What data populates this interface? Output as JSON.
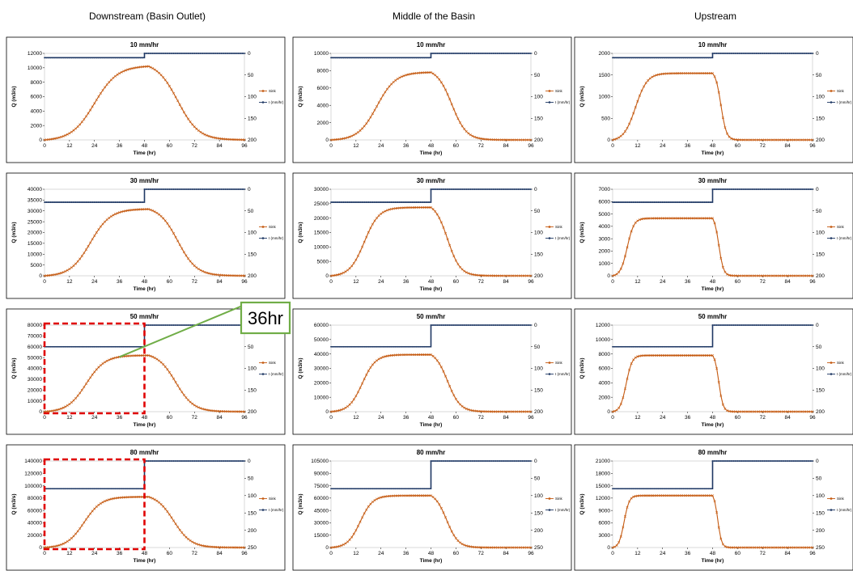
{
  "column_headers": [
    "Downstream (Basin Outlet)",
    "Middle of the Basin",
    "Upstream"
  ],
  "callout": {
    "label": "36hr",
    "border_color": "#70ad47"
  },
  "colors": {
    "sink": "#c55a11",
    "rain": "#1f3864",
    "highlight": "#e00000"
  },
  "chart_data": [
    {
      "type": "line",
      "row": 0,
      "col": 0,
      "title": "10 mm/hr",
      "xlabel": "Time (hr)",
      "ylabel": "Q (m3/s)",
      "xlim": [
        0,
        96
      ],
      "xticks": [
        0,
        12,
        24,
        36,
        48,
        60,
        72,
        84,
        96
      ],
      "ylim": [
        0,
        12000
      ],
      "yticks": [
        0,
        2000,
        4000,
        6000,
        8000,
        10000,
        12000
      ],
      "y2lim": [
        0,
        200
      ],
      "y2ticks": [
        0,
        50,
        100,
        150,
        200
      ],
      "series": [
        {
          "name": "Sink",
          "shape": "sigmoid",
          "peak": 10200,
          "rise_mid": 24,
          "rise_width": 5.5,
          "peak_hour": 50,
          "fall_mid": 64,
          "fall_width": 5
        },
        {
          "name": "I (mm/hr)",
          "values": [
            {
              "from": 0,
              "to": 48,
              "value": 10
            },
            {
              "from": 48,
              "to": 96,
              "value": 0
            }
          ]
        }
      ],
      "legend_position": "right"
    },
    {
      "type": "line",
      "row": 0,
      "col": 1,
      "title": "10 mm/hr",
      "xlabel": "Time (hr)",
      "ylabel": "Q (m3/s)",
      "xlim": [
        0,
        96
      ],
      "xticks": [
        0,
        12,
        24,
        36,
        48,
        60,
        72,
        84,
        96
      ],
      "ylim": [
        0,
        10000
      ],
      "yticks": [
        0,
        2000,
        4000,
        6000,
        8000,
        10000
      ],
      "y2lim": [
        0,
        200
      ],
      "y2ticks": [
        0,
        50,
        100,
        150,
        200
      ],
      "series": [
        {
          "name": "Sink",
          "shape": "sigmoid",
          "peak": 7800,
          "rise_mid": 22,
          "rise_width": 4.5,
          "peak_hour": 48,
          "fall_mid": 58,
          "fall_width": 3.5
        },
        {
          "name": "I (mm/hr)",
          "values": [
            {
              "from": 0,
              "to": 48,
              "value": 10
            },
            {
              "from": 48,
              "to": 96,
              "value": 0
            }
          ]
        }
      ],
      "legend_position": "right"
    },
    {
      "type": "line",
      "row": 0,
      "col": 2,
      "title": "10 mm/hr",
      "xlabel": "Time (hr)",
      "ylabel": "Q (m3/s)",
      "xlim": [
        0,
        96
      ],
      "xticks": [
        0,
        12,
        24,
        36,
        48,
        60,
        72,
        84,
        96
      ],
      "ylim": [
        0,
        2000
      ],
      "yticks": [
        0,
        500,
        1000,
        1500,
        2000
      ],
      "y2lim": [
        0,
        200
      ],
      "y2ticks": [
        0,
        50,
        100,
        150,
        200
      ],
      "series": [
        {
          "name": "Sink",
          "shape": "sigmoid",
          "peak": 1540,
          "rise_mid": 11,
          "rise_width": 2.8,
          "peak_hour": 48,
          "fall_mid": 52,
          "fall_width": 1.3
        },
        {
          "name": "I (mm/hr)",
          "values": [
            {
              "from": 0,
              "to": 48,
              "value": 10
            },
            {
              "from": 48,
              "to": 96,
              "value": 0
            }
          ]
        }
      ],
      "legend_position": "right"
    },
    {
      "type": "line",
      "row": 1,
      "col": 0,
      "title": "30 mm/hr",
      "xlabel": "Time (hr)",
      "ylabel": "Q (m3/s)",
      "xlim": [
        0,
        96
      ],
      "xticks": [
        0,
        12,
        24,
        36,
        48,
        60,
        72,
        84,
        96
      ],
      "ylim": [
        0,
        40000
      ],
      "yticks": [
        0,
        5000,
        10000,
        15000,
        20000,
        25000,
        30000,
        35000,
        40000
      ],
      "y2lim": [
        0,
        200
      ],
      "y2ticks": [
        0,
        50,
        100,
        150,
        200
      ],
      "series": [
        {
          "name": "Sink",
          "shape": "sigmoid",
          "peak": 30800,
          "rise_mid": 22,
          "rise_width": 4.8,
          "peak_hour": 50,
          "fall_mid": 64,
          "fall_width": 4.5
        },
        {
          "name": "I (mm/hr)",
          "values": [
            {
              "from": 0,
              "to": 48,
              "value": 30
            },
            {
              "from": 48,
              "to": 96,
              "value": 0
            }
          ]
        }
      ],
      "legend_position": "right"
    },
    {
      "type": "line",
      "row": 1,
      "col": 1,
      "title": "30 mm/hr",
      "xlabel": "Time (hr)",
      "ylabel": "Q (m3/s)",
      "xlim": [
        0,
        96
      ],
      "xticks": [
        0,
        12,
        24,
        36,
        48,
        60,
        72,
        84,
        96
      ],
      "ylim": [
        0,
        30000
      ],
      "yticks": [
        0,
        5000,
        10000,
        15000,
        20000,
        25000,
        30000
      ],
      "y2lim": [
        0,
        200
      ],
      "y2ticks": [
        0,
        50,
        100,
        150,
        200
      ],
      "series": [
        {
          "name": "Sink",
          "shape": "sigmoid",
          "peak": 23700,
          "rise_mid": 16,
          "rise_width": 3.5,
          "peak_hour": 48,
          "fall_mid": 56,
          "fall_width": 3
        },
        {
          "name": "I (mm/hr)",
          "values": [
            {
              "from": 0,
              "to": 48,
              "value": 30
            },
            {
              "from": 48,
              "to": 96,
              "value": 0
            }
          ]
        }
      ],
      "legend_position": "right"
    },
    {
      "type": "line",
      "row": 1,
      "col": 2,
      "title": "30 mm/hr",
      "xlabel": "Time (hr)",
      "ylabel": "Q (m3/s)",
      "xlim": [
        0,
        96
      ],
      "xticks": [
        0,
        12,
        24,
        36,
        48,
        60,
        72,
        84,
        96
      ],
      "ylim": [
        0,
        7000
      ],
      "yticks": [
        0,
        1000,
        2000,
        3000,
        4000,
        5000,
        6000,
        7000
      ],
      "y2lim": [
        0,
        200
      ],
      "y2ticks": [
        0,
        50,
        100,
        150,
        200
      ],
      "series": [
        {
          "name": "Sink",
          "shape": "sigmoid",
          "peak": 4650,
          "rise_mid": 7,
          "rise_width": 1.6,
          "peak_hour": 48,
          "fall_mid": 51,
          "fall_width": 1.1
        },
        {
          "name": "I (mm/hr)",
          "values": [
            {
              "from": 0,
              "to": 48,
              "value": 30
            },
            {
              "from": 48,
              "to": 96,
              "value": 0
            }
          ]
        }
      ],
      "legend_position": "right"
    },
    {
      "type": "line",
      "row": 2,
      "col": 0,
      "title": "50 mm/hr",
      "xlabel": "Time (hr)",
      "ylabel": "Q (m3/s)",
      "xlim": [
        0,
        96
      ],
      "xticks": [
        0,
        12,
        24,
        36,
        48,
        60,
        72,
        84,
        96
      ],
      "ylim": [
        0,
        80000
      ],
      "yticks": [
        0,
        10000,
        20000,
        30000,
        40000,
        50000,
        60000,
        70000,
        80000
      ],
      "y2lim": [
        0,
        200
      ],
      "y2ticks": [
        0,
        50,
        100,
        150,
        200
      ],
      "series": [
        {
          "name": "Sink",
          "shape": "sigmoid",
          "peak": 52000,
          "rise_mid": 20,
          "rise_width": 4.5,
          "peak_hour": 50,
          "fall_mid": 63,
          "fall_width": 4.3
        },
        {
          "name": "I (mm/hr)",
          "values": [
            {
              "from": 0,
              "to": 48,
              "value": 50
            },
            {
              "from": 48,
              "to": 96,
              "value": 0
            }
          ]
        }
      ],
      "legend_position": "right"
    },
    {
      "type": "line",
      "row": 2,
      "col": 1,
      "title": "50 mm/hr",
      "xlabel": "Time (hr)",
      "ylabel": "Q (m3/s)",
      "xlim": [
        0,
        96
      ],
      "xticks": [
        0,
        12,
        24,
        36,
        48,
        60,
        72,
        84,
        96
      ],
      "ylim": [
        0,
        60000
      ],
      "yticks": [
        0,
        10000,
        20000,
        30000,
        40000,
        50000,
        60000
      ],
      "y2lim": [
        0,
        200
      ],
      "y2ticks": [
        0,
        50,
        100,
        150,
        200
      ],
      "series": [
        {
          "name": "Sink",
          "shape": "sigmoid",
          "peak": 39500,
          "rise_mid": 15,
          "rise_width": 3.2,
          "peak_hour": 48,
          "fall_mid": 56,
          "fall_width": 3
        },
        {
          "name": "I (mm/hr)",
          "values": [
            {
              "from": 0,
              "to": 48,
              "value": 50
            },
            {
              "from": 48,
              "to": 96,
              "value": 0
            }
          ]
        }
      ],
      "legend_position": "right"
    },
    {
      "type": "line",
      "row": 2,
      "col": 2,
      "title": "50 mm/hr",
      "xlabel": "Time (hr)",
      "ylabel": "Q (m3/s)",
      "xlim": [
        0,
        96
      ],
      "xticks": [
        0,
        12,
        24,
        36,
        48,
        60,
        72,
        84,
        96
      ],
      "ylim": [
        0,
        12000
      ],
      "yticks": [
        0,
        2000,
        4000,
        6000,
        8000,
        10000,
        12000
      ],
      "y2lim": [
        0,
        200
      ],
      "y2ticks": [
        0,
        50,
        100,
        150,
        200
      ],
      "series": [
        {
          "name": "Sink",
          "shape": "sigmoid",
          "peak": 7800,
          "rise_mid": 6.5,
          "rise_width": 1.4,
          "peak_hour": 48,
          "fall_mid": 51,
          "fall_width": 1
        },
        {
          "name": "I (mm/hr)",
          "values": [
            {
              "from": 0,
              "to": 48,
              "value": 50
            },
            {
              "from": 48,
              "to": 96,
              "value": 0
            }
          ]
        }
      ],
      "legend_position": "right"
    },
    {
      "type": "line",
      "row": 3,
      "col": 0,
      "title": "80 mm/hr",
      "xlabel": "Time (hr)",
      "ylabel": "Q (m3/s)",
      "xlim": [
        0,
        96
      ],
      "xticks": [
        0,
        12,
        24,
        36,
        48,
        60,
        72,
        84,
        96
      ],
      "ylim": [
        0,
        140000
      ],
      "yticks": [
        0,
        20000,
        40000,
        60000,
        80000,
        100000,
        120000,
        140000
      ],
      "y2lim": [
        0,
        250
      ],
      "y2ticks": [
        0,
        50,
        100,
        150,
        200,
        250
      ],
      "series": [
        {
          "name": "Sink",
          "shape": "sigmoid",
          "peak": 82000,
          "rise_mid": 19,
          "rise_width": 4.2,
          "peak_hour": 50,
          "fall_mid": 62,
          "fall_width": 4.2
        },
        {
          "name": "I (mm/hr)",
          "values": [
            {
              "from": 0,
              "to": 48,
              "value": 80
            },
            {
              "from": 48,
              "to": 96,
              "value": 0
            }
          ]
        }
      ],
      "legend_position": "right"
    },
    {
      "type": "line",
      "row": 3,
      "col": 1,
      "title": "80 mm/hr",
      "xlabel": "Time (hr)",
      "ylabel": "Q (m3/s)",
      "xlim": [
        0,
        96
      ],
      "xticks": [
        0,
        12,
        24,
        36,
        48,
        60,
        72,
        84,
        96
      ],
      "ylim": [
        0,
        105000
      ],
      "yticks": [
        0,
        15000,
        30000,
        45000,
        60000,
        75000,
        90000,
        105000
      ],
      "y2lim": [
        0,
        250
      ],
      "y2ticks": [
        0,
        50,
        100,
        150,
        200,
        250
      ],
      "series": [
        {
          "name": "Sink",
          "shape": "sigmoid",
          "peak": 63000,
          "rise_mid": 14,
          "rise_width": 3,
          "peak_hour": 48,
          "fall_mid": 55.5,
          "fall_width": 2.8
        },
        {
          "name": "I (mm/hr)",
          "values": [
            {
              "from": 0,
              "to": 48,
              "value": 80
            },
            {
              "from": 48,
              "to": 96,
              "value": 0
            }
          ]
        }
      ],
      "legend_position": "right"
    },
    {
      "type": "line",
      "row": 3,
      "col": 2,
      "title": "80 mm/hr",
      "xlabel": "Time (hr)",
      "ylabel": "Q (m3/s)",
      "xlim": [
        0,
        96
      ],
      "xticks": [
        0,
        12,
        24,
        36,
        48,
        60,
        72,
        84,
        96
      ],
      "ylim": [
        0,
        21000
      ],
      "yticks": [
        0,
        3000,
        6000,
        9000,
        12000,
        15000,
        18000,
        21000
      ],
      "y2lim": [
        0,
        250
      ],
      "y2ticks": [
        0,
        50,
        100,
        150,
        200,
        250
      ],
      "series": [
        {
          "name": "Sink",
          "shape": "sigmoid",
          "peak": 12600,
          "rise_mid": 5.5,
          "rise_width": 1.2,
          "peak_hour": 48,
          "fall_mid": 50.5,
          "fall_width": 0.9
        },
        {
          "name": "I (mm/hr)",
          "values": [
            {
              "from": 0,
              "to": 48,
              "value": 80
            },
            {
              "from": 48,
              "to": 96,
              "value": 0
            }
          ]
        }
      ],
      "legend_position": "right"
    }
  ],
  "highlight_boxes": [
    {
      "panel_row": 2,
      "panel_col": 0,
      "x_from": 0,
      "x_to": 48
    },
    {
      "panel_row": 3,
      "panel_col": 0,
      "x_from": 0,
      "x_to": 48
    }
  ]
}
